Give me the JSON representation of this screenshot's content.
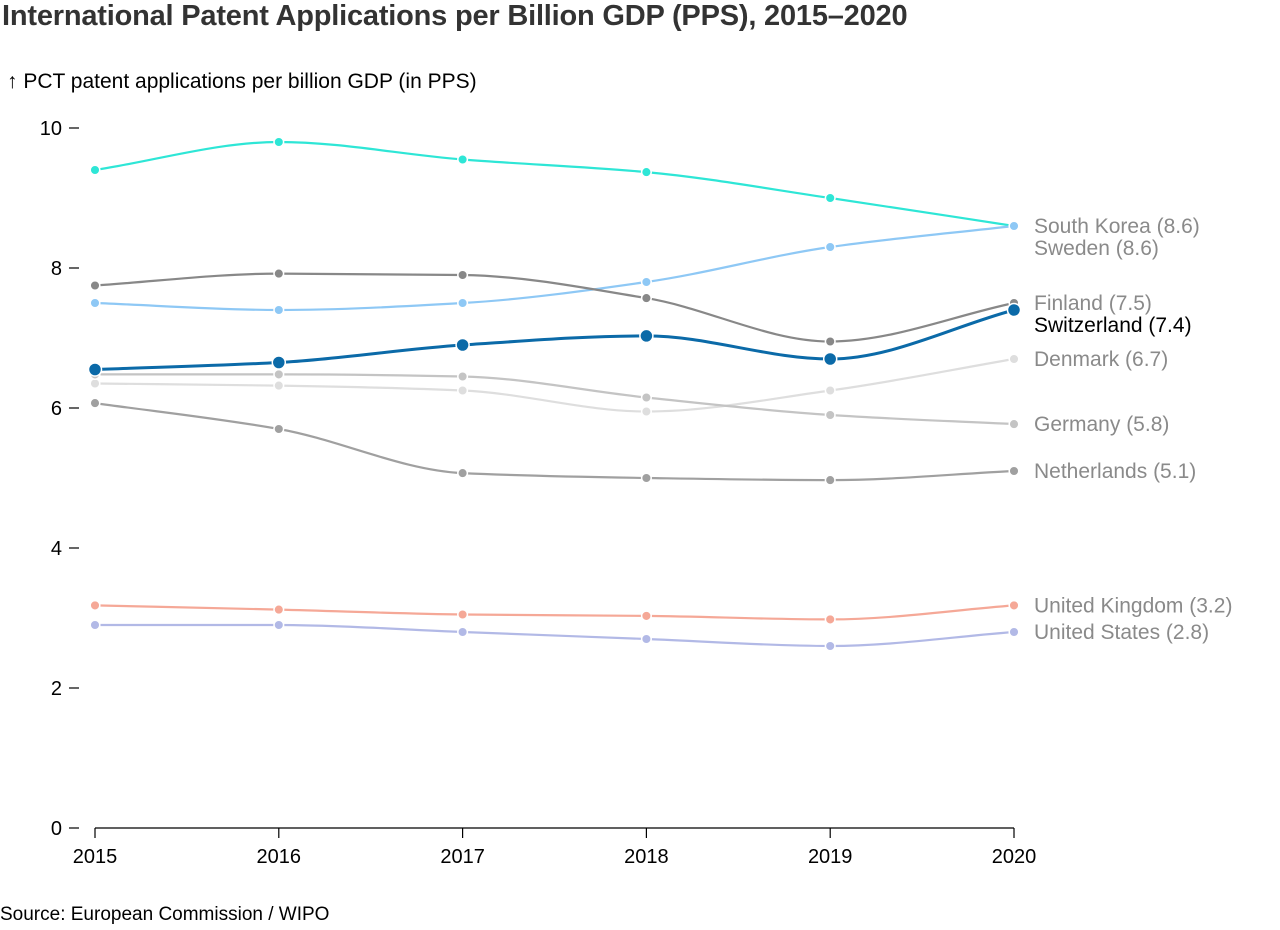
{
  "title": "International Patent Applications per Billion GDP (PPS), 2015–2020",
  "source": "Source: European Commission / WIPO",
  "colors": {
    "axis": "#000000",
    "highlight": "#0b6aa8",
    "end_label_muted": "#8a8a8a",
    "end_label_highlight": "#000000"
  },
  "chart_data": {
    "type": "line",
    "ylabel": "↑ PCT patent applications per billion GDP (in PPS)",
    "xlabel": "",
    "x": [
      2015,
      2016,
      2017,
      2018,
      2019,
      2020
    ],
    "x_tick_labels": [
      "2015",
      "2016",
      "2017",
      "2018",
      "2019",
      "2020"
    ],
    "ylim": [
      0,
      10
    ],
    "y_ticks": [
      0,
      2,
      4,
      6,
      8,
      10
    ],
    "y_tick_labels": [
      "0",
      "2",
      "4",
      "6",
      "8",
      "10"
    ],
    "grid": false,
    "legend": "end-of-line labels",
    "series": [
      {
        "name": "South Korea",
        "end_label": "South Korea (8.6)",
        "color": "#2ee6d6",
        "highlight": false,
        "values": [
          9.4,
          9.8,
          9.55,
          9.37,
          9.0,
          8.6
        ]
      },
      {
        "name": "Sweden",
        "end_label": "Sweden (8.6)",
        "color": "#8ec8f5",
        "highlight": false,
        "values": [
          7.5,
          7.4,
          7.5,
          7.8,
          8.3,
          8.6
        ]
      },
      {
        "name": "Finland",
        "end_label": "Finland (7.5)",
        "color": "#888888",
        "highlight": false,
        "values": [
          7.75,
          7.92,
          7.9,
          7.57,
          6.95,
          7.5
        ]
      },
      {
        "name": "Switzerland",
        "end_label": "Switzerland (7.4)",
        "color": "#0b6aa8",
        "highlight": true,
        "values": [
          6.55,
          6.65,
          6.9,
          7.03,
          6.7,
          7.4
        ]
      },
      {
        "name": "Denmark",
        "end_label": "Denmark (6.7)",
        "color": "#dedede",
        "highlight": false,
        "values": [
          6.35,
          6.32,
          6.25,
          5.95,
          6.25,
          6.7
        ]
      },
      {
        "name": "Germany",
        "end_label": "Germany (5.8)",
        "color": "#c4c4c4",
        "highlight": false,
        "values": [
          6.48,
          6.48,
          6.45,
          6.15,
          5.9,
          5.77
        ]
      },
      {
        "name": "Netherlands",
        "end_label": "Netherlands (5.1)",
        "color": "#a0a0a0",
        "highlight": false,
        "values": [
          6.07,
          5.7,
          5.07,
          5.0,
          4.97,
          5.1
        ]
      },
      {
        "name": "United Kingdom",
        "end_label": "United Kingdom (3.2)",
        "color": "#f5a897",
        "highlight": false,
        "values": [
          3.18,
          3.12,
          3.05,
          3.03,
          2.98,
          3.18
        ]
      },
      {
        "name": "United States",
        "end_label": "United States (2.8)",
        "color": "#b2b9e6",
        "highlight": false,
        "values": [
          2.9,
          2.9,
          2.8,
          2.7,
          2.6,
          2.8
        ]
      }
    ]
  }
}
